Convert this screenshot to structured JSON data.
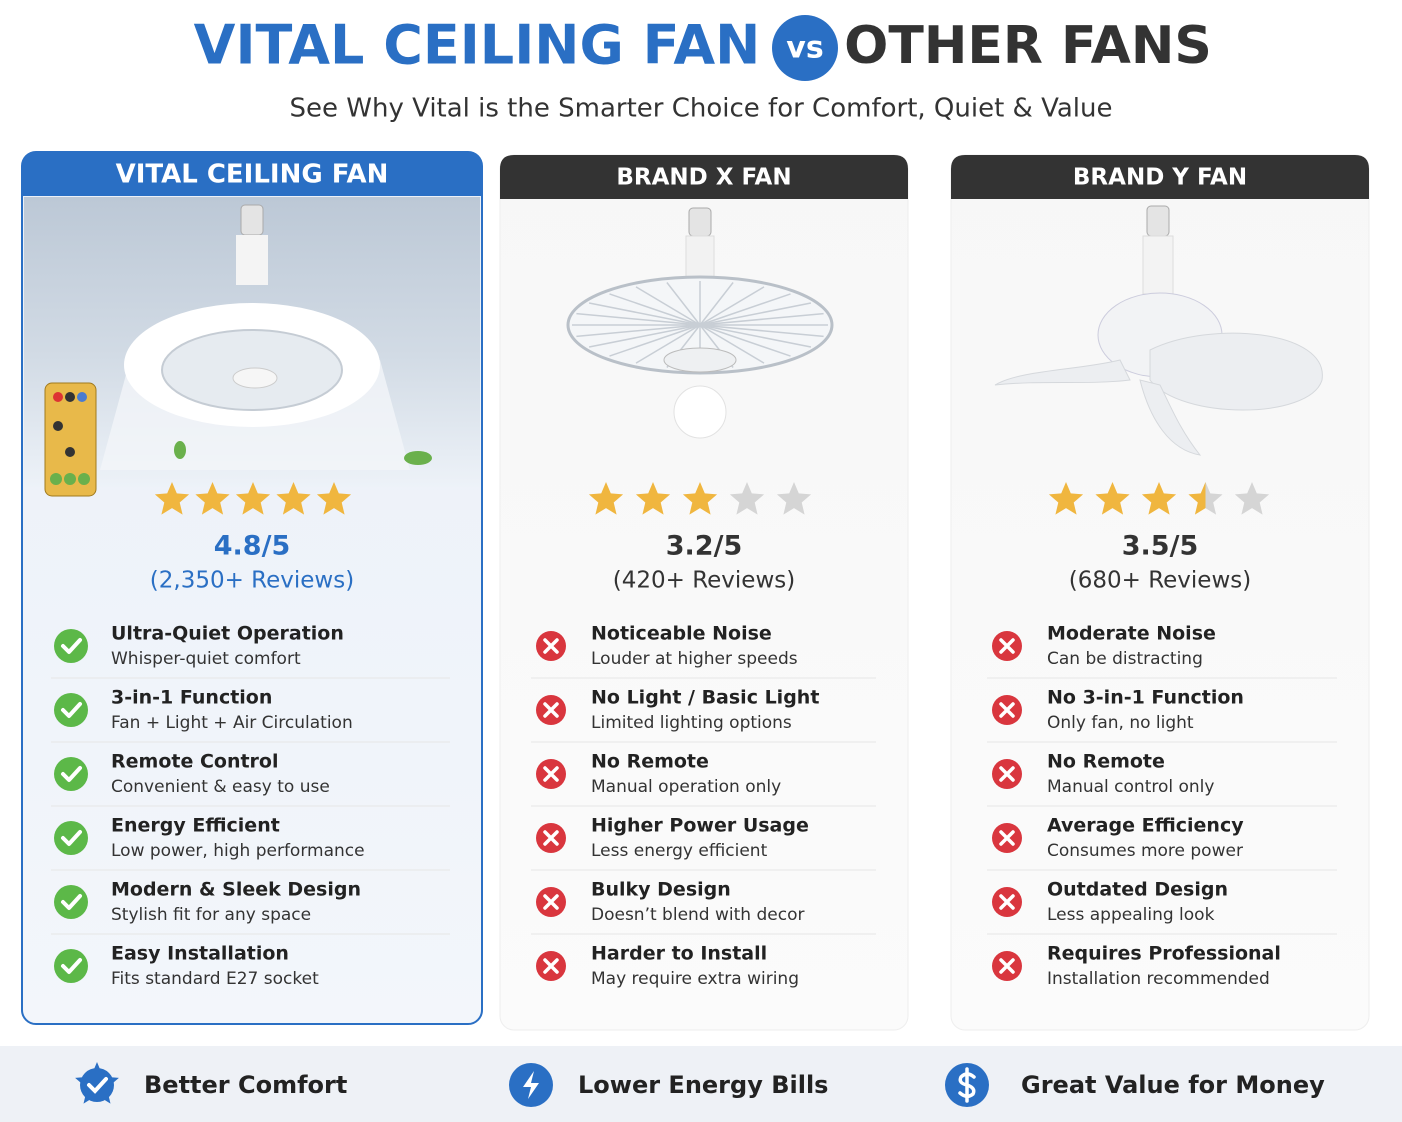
{
  "header": {
    "title_left": "VITAL CEILING FAN",
    "vs": "vs",
    "title_right": "OTHER FANS",
    "subtitle": "See Why Vital is the Smarter Choice for Comfort, Quiet & Value"
  },
  "columns": [
    {
      "name": "VITAL CEILING FAN",
      "rating": "4.8/5",
      "reviews": "(2,350+ Reviews)",
      "features": [
        {
          "title": "Ultra-Quiet Operation",
          "detail": "Whisper-quiet comfort"
        },
        {
          "title": "3-in-1 Function",
          "detail": "Fan + Light + Air Circulation"
        },
        {
          "title": "Remote Control",
          "detail": "Convenient & easy to use"
        },
        {
          "title": "Energy Efficient",
          "detail": "Low power, high performance"
        },
        {
          "title": "Modern & Sleek Design",
          "detail": "Stylish fit for any space"
        },
        {
          "title": "Easy Installation",
          "detail": "Fits standard E27 socket"
        }
      ]
    },
    {
      "name": "BRAND X FAN",
      "rating": "3.2/5",
      "reviews": "(420+ Reviews)",
      "features": [
        {
          "title": "Noticeable Noise",
          "detail": "Louder at higher speeds"
        },
        {
          "title": "No Light / Basic Light",
          "detail": "Limited lighting options"
        },
        {
          "title": "No Remote",
          "detail": "Manual operation only"
        },
        {
          "title": "Higher Power Usage",
          "detail": "Less energy efficient"
        },
        {
          "title": "Bulky Design",
          "detail": "Doesn’t blend with decor"
        },
        {
          "title": "Harder to Install",
          "detail": "May require extra wiring"
        }
      ]
    },
    {
      "name": "BRAND Y FAN",
      "rating": "3.5/5",
      "reviews": "(680+ Reviews)",
      "features": [
        {
          "title": "Moderate Noise",
          "detail": "Can be distracting"
        },
        {
          "title": "No 3-in-1 Function",
          "detail": "Only fan, no light"
        },
        {
          "title": "No Remote",
          "detail": "Manual control only"
        },
        {
          "title": "Average Efficiency",
          "detail": "Consumes more power"
        },
        {
          "title": "Outdated Design",
          "detail": "Less appealing look"
        },
        {
          "title": "Requires Professional",
          "detail": "Installation recommended"
        }
      ]
    }
  ],
  "footer": [
    {
      "label": "Better Comfort"
    },
    {
      "label": "Lower Energy Bills"
    },
    {
      "label": "Great Value for Money"
    }
  ]
}
